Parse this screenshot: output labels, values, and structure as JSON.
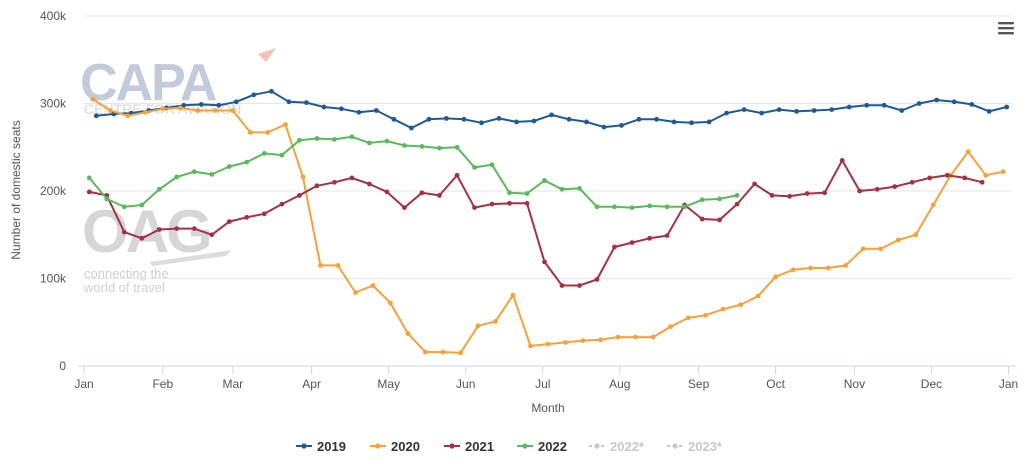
{
  "menu_icon": "hamburger-menu-icon",
  "watermark": {
    "capa_logo": "CAPA",
    "capa_sub": "CENTRE FOR AVIATION",
    "oag_logo": "OAG",
    "oag_tagline_1": "connecting the",
    "oag_tagline_2": "world of travel"
  },
  "chart_data": {
    "type": "line",
    "xlabel": "Month",
    "ylabel": "Number of domestic seats",
    "x_range": [
      0,
      53
    ],
    "ylim": [
      0,
      400000
    ],
    "y_ticks": [
      {
        "value": 0,
        "label": "0"
      },
      {
        "value": 100000,
        "label": "100k"
      },
      {
        "value": 200000,
        "label": "200k"
      },
      {
        "value": 300000,
        "label": "300k"
      },
      {
        "value": 400000,
        "label": "400k"
      }
    ],
    "x_ticks": [
      {
        "value": 0,
        "label": "Jan"
      },
      {
        "value": 4.5,
        "label": "Feb"
      },
      {
        "value": 8.5,
        "label": "Mar"
      },
      {
        "value": 13,
        "label": "Apr"
      },
      {
        "value": 17.4,
        "label": "May"
      },
      {
        "value": 21.8,
        "label": "Jun"
      },
      {
        "value": 26.2,
        "label": "Jul"
      },
      {
        "value": 30.6,
        "label": "Aug"
      },
      {
        "value": 35.1,
        "label": "Sep"
      },
      {
        "value": 39.5,
        "label": "Oct"
      },
      {
        "value": 44,
        "label": "Nov"
      },
      {
        "value": 48.4,
        "label": "Dec"
      },
      {
        "value": 52.8,
        "label": "Jan"
      }
    ],
    "grid": true,
    "legend_position": "bottom",
    "series": [
      {
        "name": "2019",
        "color": "#1f5a96",
        "x_start": 0.7,
        "values": [
          286000,
          288000,
          289000,
          292000,
          295000,
          298000,
          299000,
          298000,
          302000,
          310000,
          314000,
          302000,
          301000,
          296000,
          294000,
          290000,
          292000,
          282000,
          272000,
          282000,
          283000,
          282000,
          278000,
          283000,
          279000,
          280000,
          287000,
          282000,
          279000,
          273000,
          275000,
          282000,
          282000,
          279000,
          278000,
          279000,
          289000,
          293000,
          289000,
          293000,
          291000,
          292000,
          293000,
          296000,
          298000,
          298000,
          292000,
          300000,
          304000,
          302000,
          299000,
          291000,
          296000
        ]
      },
      {
        "name": "2020",
        "color": "#f5a23a",
        "x_start": 0.5,
        "values": [
          305000,
          292000,
          286000,
          290000,
          294000,
          295000,
          292000,
          292000,
          292000,
          267000,
          267000,
          276000,
          216000,
          115000,
          115000,
          84000,
          92000,
          72000,
          37000,
          16000,
          16000,
          15000,
          46000,
          51000,
          81000,
          23000,
          25000,
          27000,
          29000,
          30000,
          33000,
          33000,
          33000,
          45000,
          55000,
          58000,
          65000,
          70000,
          80000,
          102000,
          110000,
          112000,
          112000,
          115000,
          134000,
          134000,
          144000,
          150000,
          184000,
          218000,
          245000,
          218000,
          222000
        ]
      },
      {
        "name": "2021",
        "color": "#a33245",
        "x_start": 0.3,
        "values": [
          199000,
          195000,
          153000,
          146000,
          156000,
          157000,
          157000,
          150000,
          165000,
          170000,
          174000,
          185000,
          195000,
          206000,
          210000,
          215000,
          208000,
          199000,
          181000,
          198000,
          195000,
          218000,
          181000,
          185000,
          186000,
          186000,
          119000,
          92000,
          92000,
          99000,
          136000,
          141000,
          146000,
          149000,
          184000,
          168000,
          167000,
          185000,
          208000,
          195000,
          194000,
          197000,
          198000,
          235000,
          200000,
          202000,
          205000,
          210000,
          215000,
          218000,
          215000,
          210000
        ]
      },
      {
        "name": "2022",
        "color": "#5cb85c",
        "x_start": 0.3,
        "values": [
          215000,
          191000,
          182000,
          184000,
          202000,
          216000,
          222000,
          219000,
          228000,
          233000,
          243000,
          241000,
          258000,
          260000,
          259000,
          262000,
          255000,
          257000,
          252000,
          251000,
          249000,
          250000,
          227000,
          230000,
          198000,
          197000,
          212000,
          202000,
          203000,
          182000,
          182000,
          181000,
          183000,
          182000,
          182000,
          190000,
          191000,
          195000
        ]
      }
    ],
    "legend_extra": [
      {
        "name": "2022*",
        "color": "#c8c8c8"
      },
      {
        "name": "2023*",
        "color": "#c8c8c8"
      }
    ]
  }
}
